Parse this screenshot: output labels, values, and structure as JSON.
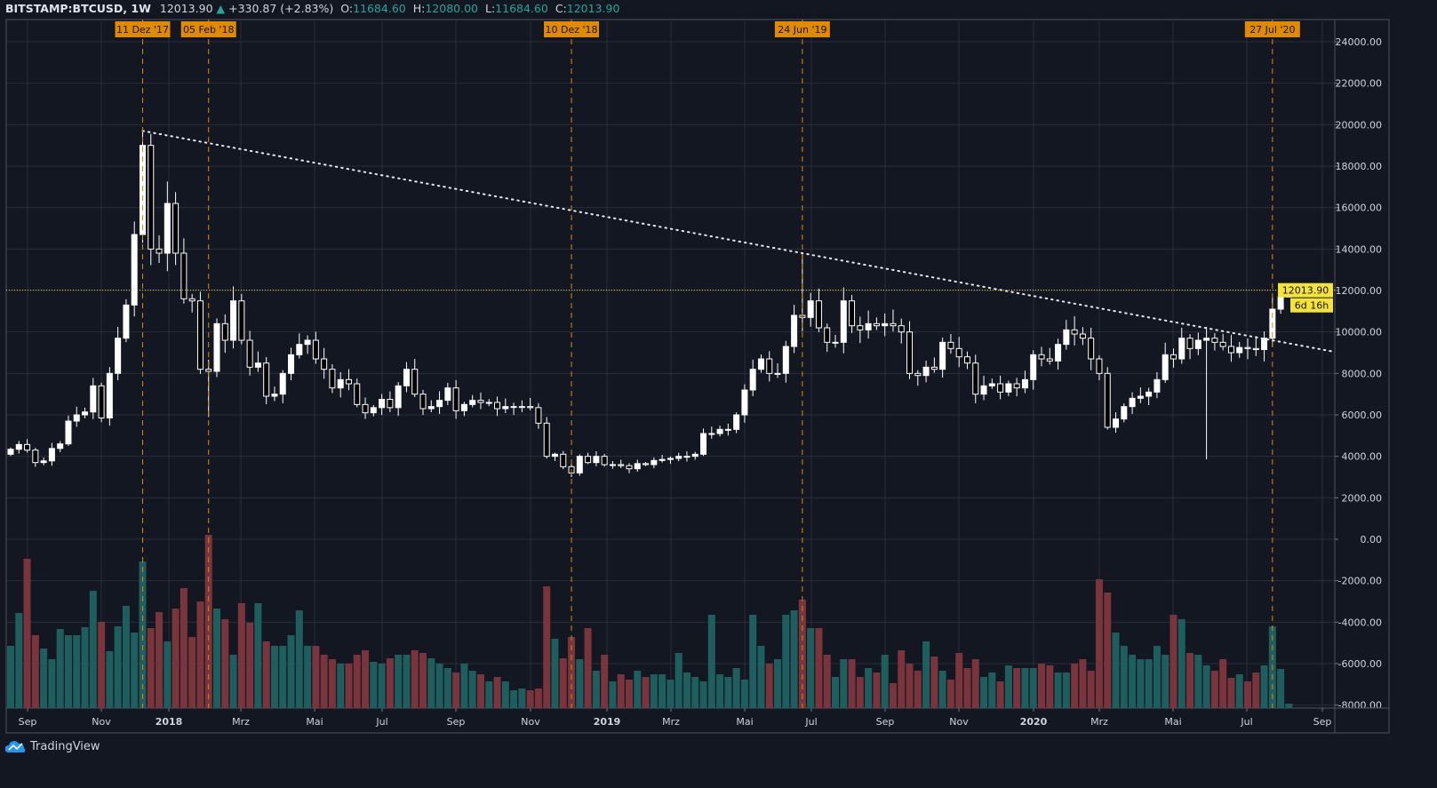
{
  "header": {
    "symbol": "BITSTAMP:BTCUSD, 1W",
    "last": "12013.90",
    "change": "+330.87 (+2.83%)",
    "o_label": "O:",
    "o": "11684.60",
    "h_label": "H:",
    "h": "12080.00",
    "l_label": "L:",
    "l": "11684.60",
    "c_label": "C:",
    "c": "12013.90"
  },
  "colors": {
    "bg": "#131722",
    "grid": "#2a2e39",
    "up": "#ffffff",
    "down": "#000000",
    "vol_up": "#1e5e5e",
    "vol_down": "#7a343b",
    "marker": "#e08a00",
    "price_line": "#f5e23b"
  },
  "brand": "TradingView",
  "chart_data": {
    "type": "candlestick",
    "interval": "1W",
    "first_open": 4100,
    "closes": [
      4340,
      4570,
      4300,
      3700,
      3780,
      4380,
      4600,
      5700,
      6000,
      6140,
      7400,
      5850,
      8000,
      9700,
      11300,
      14700,
      19000,
      14000,
      13800,
      16200,
      13800,
      11600,
      11500,
      8200,
      8100,
      10400,
      9600,
      11500,
      9600,
      8300,
      8500,
      6900,
      7000,
      8000,
      8900,
      9400,
      9600,
      8700,
      8200,
      7300,
      7700,
      7500,
      6500,
      6100,
      6350,
      6750,
      6350,
      7400,
      8200,
      7000,
      6300,
      6400,
      6700,
      7300,
      6200,
      6500,
      6700,
      6600,
      6600,
      6300,
      6400,
      6400,
      6400,
      6350,
      5600,
      4000,
      4100,
      3500,
      3200,
      4000,
      3700,
      4000,
      3600,
      3600,
      3550,
      3400,
      3650,
      3600,
      3800,
      3850,
      3900,
      4000,
      4000,
      4100,
      5100,
      5100,
      5300,
      5300,
      6000,
      7200,
      8200,
      8700,
      8000,
      8000,
      9300,
      10800,
      10700,
      11500,
      10200,
      9500,
      9500,
      11500,
      10300,
      10100,
      10400,
      10300,
      10400,
      10300,
      10000,
      8000,
      7900,
      8300,
      8200,
      9500,
      9200,
      8800,
      8500,
      7000,
      7400,
      7500,
      7100,
      7500,
      7300,
      7700,
      8900,
      8700,
      8600,
      9400,
      10100,
      9900,
      9700,
      8700,
      8000,
      5400,
      5800,
      6400,
      6800,
      6900,
      7100,
      7700,
      8900,
      8700,
      9700,
      9200,
      9600,
      9700,
      9500,
      9300,
      9000,
      9250,
      9200,
      9150,
      9700,
      11100,
      11684.6,
      12013.9
    ],
    "volumes": [
      70,
      107,
      168,
      82,
      67,
      55,
      89,
      82,
      82,
      91,
      132,
      97,
      64,
      92,
      115,
      85,
      165,
      90,
      108,
      75,
      112,
      135,
      80,
      120,
      195,
      112,
      100,
      60,
      118,
      96,
      118,
      75,
      70,
      70,
      82,
      110,
      70,
      70,
      60,
      55,
      50,
      50,
      60,
      65,
      52,
      50,
      56,
      60,
      60,
      65,
      62,
      56,
      50,
      45,
      40,
      50,
      42,
      38,
      30,
      35,
      30,
      20,
      22,
      20,
      22,
      137,
      78,
      56,
      80,
      55,
      90,
      42,
      60,
      30,
      38,
      32,
      42,
      35,
      38,
      38,
      32,
      62,
      40,
      35,
      30,
      105,
      38,
      35,
      45,
      32,
      105,
      70,
      50,
      55,
      105,
      110,
      122,
      90,
      90,
      60,
      35,
      55,
      55,
      35,
      45,
      40,
      60,
      28,
      65,
      50,
      42,
      75,
      58,
      42,
      32,
      62,
      45,
      55,
      35,
      40,
      30,
      48,
      45,
      45,
      45,
      50,
      48,
      40,
      40,
      50,
      55,
      42,
      145,
      130,
      85,
      70,
      60,
      55,
      55,
      70,
      60,
      105,
      100,
      62,
      60,
      48,
      42,
      55,
      34,
      38,
      30,
      40,
      48,
      92,
      44,
      5
    ],
    "wick_extremes": [
      {
        "week": 16,
        "high": 19700
      },
      {
        "week": 96,
        "high": 13800
      },
      {
        "week": 155,
        "high": 12080
      },
      {
        "week": 155,
        "low": 11684.6
      },
      {
        "week": 145,
        "low": 3850
      },
      {
        "week": 24,
        "low": 5900
      }
    ],
    "trendline": {
      "from_week": 16,
      "from_price": 19700,
      "to_week": 96,
      "to_price": 13800
    },
    "last_price_label": "12013.90",
    "countdown_label": "6d 16h",
    "price_axis": {
      "min": -8000,
      "max": 24000,
      "step": 2000,
      "ticks": [
        "24000.00",
        "22000.00",
        "20000.00",
        "18000.00",
        "16000.00",
        "14000.00",
        "12000.00",
        "10000.00",
        "8000.00",
        "6000.00",
        "4000.00",
        "2000.00",
        "0.00",
        "-2000.00",
        "-4000.00",
        "-6000.00",
        "-8000.00"
      ]
    },
    "time_axis": [
      "Sep",
      "Nov",
      "2018",
      "Mrz",
      "Mai",
      "Jul",
      "Sep",
      "Nov",
      "2019",
      "Mrz",
      "Mai",
      "Jul",
      "Sep",
      "Nov",
      "2020",
      "Mrz",
      "Mai",
      "Jul",
      "Sep"
    ],
    "markers": [
      "11 Dez '17",
      "05 Feb '18",
      "10 Dez '18",
      "24 Jun '19",
      "27 Jul '20"
    ]
  }
}
